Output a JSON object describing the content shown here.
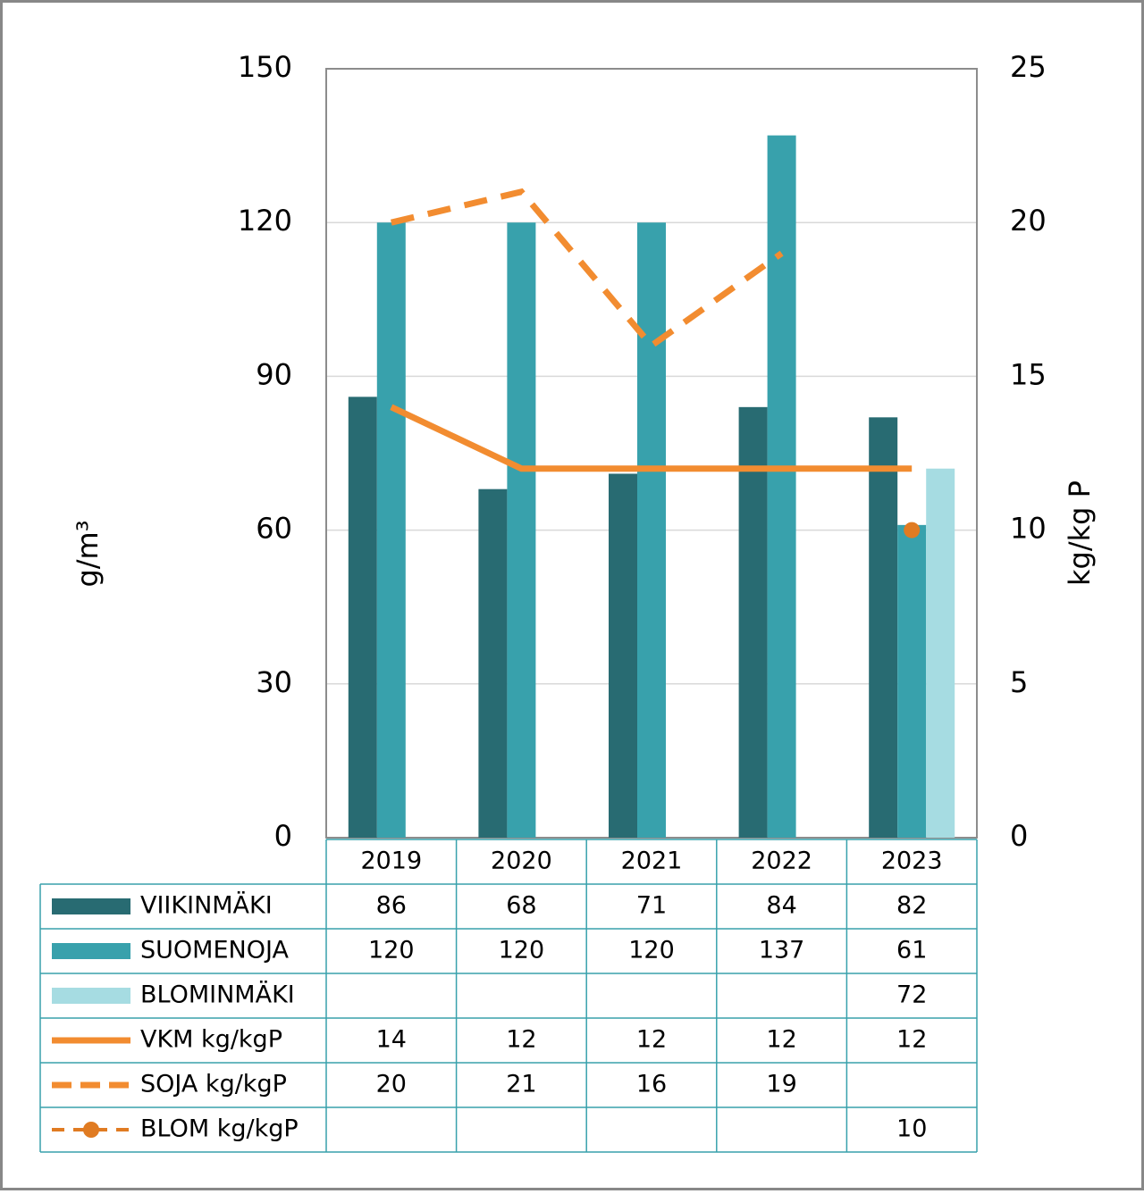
{
  "chart_data": {
    "type": "bar",
    "categories": [
      "2019",
      "2020",
      "2021",
      "2022",
      "2023"
    ],
    "y_label": "g/m³",
    "y2_label": "kg/kg P",
    "ylim": [
      0,
      150
    ],
    "yticks": [
      0,
      30,
      60,
      90,
      120,
      150
    ],
    "y2lim": [
      0,
      25
    ],
    "y2ticks": [
      0,
      5,
      10,
      15,
      20,
      25
    ],
    "grid": true,
    "series": [
      {
        "name": "VIIKINMÄKI",
        "type": "bar",
        "color": "#286b72",
        "values": [
          86,
          68,
          71,
          84,
          82
        ]
      },
      {
        "name": "SUOMENOJA",
        "type": "bar",
        "color": "#38a1ac",
        "values": [
          120,
          120,
          120,
          137,
          61
        ]
      },
      {
        "name": "BLOMINMÄKI",
        "type": "bar",
        "color": "#a6dce2",
        "values": [
          null,
          null,
          null,
          null,
          72
        ]
      },
      {
        "name": "VKM kg/kgP",
        "type": "line",
        "axis": "y2",
        "color": "#f28c30",
        "line_style": "solid",
        "values": [
          14,
          12,
          12,
          12,
          12
        ]
      },
      {
        "name": "SOJA kg/kgP",
        "type": "line",
        "axis": "y2",
        "color": "#f28c30",
        "line_style": "dashed",
        "values": [
          20,
          21,
          16,
          19,
          null
        ]
      },
      {
        "name": "BLOM kg/kgP",
        "type": "line",
        "axis": "y2",
        "color": "#e07b22",
        "line_style": "dashed",
        "marker": "circle",
        "values": [
          null,
          null,
          null,
          null,
          10
        ]
      }
    ]
  }
}
